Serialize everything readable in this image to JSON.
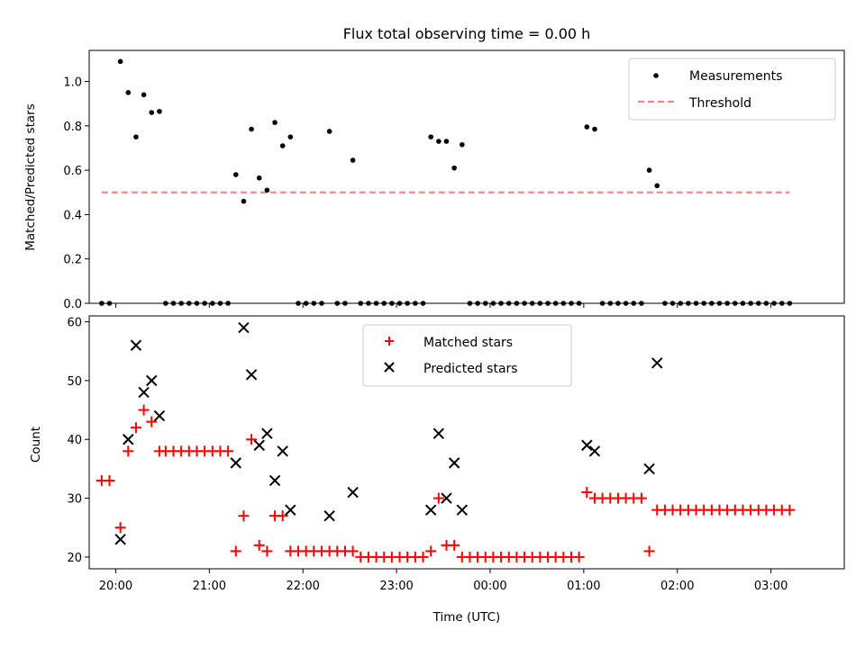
{
  "chart_data": [
    {
      "type": "scatter",
      "title": "Flux total observing time = 0.00 h",
      "xlabel": "",
      "ylabel": "Matched/Predicted stars",
      "xlim": [
        "19:43",
        "03:47"
      ],
      "ylim": [
        0,
        1.14
      ],
      "y_ticks": [
        "0.0",
        "0.2",
        "0.4",
        "0.6",
        "0.8",
        "1.0"
      ],
      "legend_position": "top-right",
      "grid": false,
      "series": [
        {
          "name": "Measurements",
          "marker": "dot",
          "color": "#000000",
          "points": [
            [
              "19:51",
              0.0
            ],
            [
              "19:56",
              0.0
            ],
            [
              "20:03",
              1.09
            ],
            [
              "20:08",
              0.95
            ],
            [
              "20:13",
              0.75
            ],
            [
              "20:18",
              0.94
            ],
            [
              "20:23",
              0.86
            ],
            [
              "20:28",
              0.865
            ],
            [
              "20:32",
              0.0
            ],
            [
              "20:37",
              0.0
            ],
            [
              "20:42",
              0.0
            ],
            [
              "20:47",
              0.0
            ],
            [
              "20:52",
              0.0
            ],
            [
              "20:57",
              0.0
            ],
            [
              "21:02",
              0.0
            ],
            [
              "21:07",
              0.0
            ],
            [
              "21:12",
              0.0
            ],
            [
              "21:17",
              0.58
            ],
            [
              "21:22",
              0.46
            ],
            [
              "21:27",
              0.785
            ],
            [
              "21:32",
              0.565
            ],
            [
              "21:37",
              0.51
            ],
            [
              "21:42",
              0.815
            ],
            [
              "21:47",
              0.71
            ],
            [
              "21:52",
              0.75
            ],
            [
              "21:57",
              0.0
            ],
            [
              "22:02",
              0.0
            ],
            [
              "22:07",
              0.0
            ],
            [
              "22:12",
              0.0
            ],
            [
              "22:17",
              0.775
            ],
            [
              "22:22",
              0.0
            ],
            [
              "22:27",
              0.0
            ],
            [
              "22:32",
              0.645
            ],
            [
              "22:37",
              0.0
            ],
            [
              "22:42",
              0.0
            ],
            [
              "22:47",
              0.0
            ],
            [
              "22:52",
              0.0
            ],
            [
              "22:57",
              0.0
            ],
            [
              "23:02",
              0.0
            ],
            [
              "23:07",
              0.0
            ],
            [
              "23:12",
              0.0
            ],
            [
              "23:17",
              0.0
            ],
            [
              "23:22",
              0.75
            ],
            [
              "23:27",
              0.73
            ],
            [
              "23:32",
              0.73
            ],
            [
              "23:37",
              0.61
            ],
            [
              "23:42",
              0.715
            ],
            [
              "23:47",
              0.0
            ],
            [
              "23:52",
              0.0
            ],
            [
              "23:57",
              0.0
            ],
            [
              "00:02",
              0.0
            ],
            [
              "00:07",
              0.0
            ],
            [
              "00:12",
              0.0
            ],
            [
              "00:17",
              0.0
            ],
            [
              "00:22",
              0.0
            ],
            [
              "00:27",
              0.0
            ],
            [
              "00:32",
              0.0
            ],
            [
              "00:37",
              0.0
            ],
            [
              "00:42",
              0.0
            ],
            [
              "00:47",
              0.0
            ],
            [
              "00:52",
              0.0
            ],
            [
              "00:57",
              0.0
            ],
            [
              "01:02",
              0.795
            ],
            [
              "01:07",
              0.785
            ],
            [
              "01:12",
              0.0
            ],
            [
              "01:17",
              0.0
            ],
            [
              "01:22",
              0.0
            ],
            [
              "01:27",
              0.0
            ],
            [
              "01:32",
              0.0
            ],
            [
              "01:37",
              0.0
            ],
            [
              "01:42",
              0.6
            ],
            [
              "01:47",
              0.53
            ],
            [
              "01:52",
              0.0
            ],
            [
              "01:57",
              0.0
            ],
            [
              "02:02",
              0.0
            ],
            [
              "02:07",
              0.0
            ],
            [
              "02:12",
              0.0
            ],
            [
              "02:17",
              0.0
            ],
            [
              "02:22",
              0.0
            ],
            [
              "02:27",
              0.0
            ],
            [
              "02:32",
              0.0
            ],
            [
              "02:37",
              0.0
            ],
            [
              "02:42",
              0.0
            ],
            [
              "02:47",
              0.0
            ],
            [
              "02:52",
              0.0
            ],
            [
              "02:57",
              0.0
            ],
            [
              "03:02",
              0.0
            ],
            [
              "03:07",
              0.0
            ],
            [
              "03:12",
              0.0
            ]
          ]
        },
        {
          "name": "Threshold",
          "type": "line",
          "style": "dashed",
          "color": "#ff7f7f",
          "points": [
            [
              "19:51",
              0.5
            ],
            [
              "03:12",
              0.5
            ]
          ]
        }
      ]
    },
    {
      "type": "scatter",
      "title": "",
      "xlabel": "Time (UTC)",
      "ylabel": "Count",
      "xlim": [
        "19:43",
        "03:47"
      ],
      "ylim": [
        18,
        61
      ],
      "x_ticks": [
        "20:00",
        "21:00",
        "22:00",
        "23:00",
        "00:00",
        "01:00",
        "02:00",
        "03:00"
      ],
      "y_ticks": [
        "20",
        "30",
        "40",
        "50",
        "60"
      ],
      "legend_position": "top-center",
      "grid": false,
      "series": [
        {
          "name": "Matched stars",
          "marker": "plus",
          "color": "#ff0000",
          "points": [
            [
              "19:51",
              33
            ],
            [
              "19:56",
              33
            ],
            [
              "20:03",
              25
            ],
            [
              "20:08",
              38
            ],
            [
              "20:13",
              42
            ],
            [
              "20:18",
              45
            ],
            [
              "20:23",
              43
            ],
            [
              "20:28",
              38
            ],
            [
              "20:32",
              38
            ],
            [
              "20:37",
              38
            ],
            [
              "20:42",
              38
            ],
            [
              "20:47",
              38
            ],
            [
              "20:52",
              38
            ],
            [
              "20:57",
              38
            ],
            [
              "21:02",
              38
            ],
            [
              "21:07",
              38
            ],
            [
              "21:12",
              38
            ],
            [
              "21:17",
              21
            ],
            [
              "21:22",
              27
            ],
            [
              "21:27",
              40
            ],
            [
              "21:32",
              22
            ],
            [
              "21:37",
              21
            ],
            [
              "21:42",
              27
            ],
            [
              "21:47",
              27
            ],
            [
              "21:52",
              21
            ],
            [
              "21:57",
              21
            ],
            [
              "22:02",
              21
            ],
            [
              "22:07",
              21
            ],
            [
              "22:12",
              21
            ],
            [
              "22:17",
              21
            ],
            [
              "22:22",
              21
            ],
            [
              "22:27",
              21
            ],
            [
              "22:32",
              21
            ],
            [
              "22:37",
              20
            ],
            [
              "22:42",
              20
            ],
            [
              "22:47",
              20
            ],
            [
              "22:52",
              20
            ],
            [
              "22:57",
              20
            ],
            [
              "23:02",
              20
            ],
            [
              "23:07",
              20
            ],
            [
              "23:12",
              20
            ],
            [
              "23:17",
              20
            ],
            [
              "23:22",
              21
            ],
            [
              "23:27",
              30
            ],
            [
              "23:32",
              22
            ],
            [
              "23:37",
              22
            ],
            [
              "23:42",
              20
            ],
            [
              "23:47",
              20
            ],
            [
              "23:52",
              20
            ],
            [
              "23:57",
              20
            ],
            [
              "00:02",
              20
            ],
            [
              "00:07",
              20
            ],
            [
              "00:12",
              20
            ],
            [
              "00:17",
              20
            ],
            [
              "00:22",
              20
            ],
            [
              "00:27",
              20
            ],
            [
              "00:32",
              20
            ],
            [
              "00:37",
              20
            ],
            [
              "00:42",
              20
            ],
            [
              "00:47",
              20
            ],
            [
              "00:52",
              20
            ],
            [
              "00:57",
              20
            ],
            [
              "01:02",
              31
            ],
            [
              "01:07",
              30
            ],
            [
              "01:12",
              30
            ],
            [
              "01:17",
              30
            ],
            [
              "01:22",
              30
            ],
            [
              "01:27",
              30
            ],
            [
              "01:32",
              30
            ],
            [
              "01:37",
              30
            ],
            [
              "01:42",
              21
            ],
            [
              "01:47",
              28
            ],
            [
              "01:52",
              28
            ],
            [
              "01:57",
              28
            ],
            [
              "02:02",
              28
            ],
            [
              "02:07",
              28
            ],
            [
              "02:12",
              28
            ],
            [
              "02:17",
              28
            ],
            [
              "02:22",
              28
            ],
            [
              "02:27",
              28
            ],
            [
              "02:32",
              28
            ],
            [
              "02:37",
              28
            ],
            [
              "02:42",
              28
            ],
            [
              "02:47",
              28
            ],
            [
              "02:52",
              28
            ],
            [
              "02:57",
              28
            ],
            [
              "03:02",
              28
            ],
            [
              "03:07",
              28
            ],
            [
              "03:12",
              28
            ]
          ]
        },
        {
          "name": "Predicted stars",
          "marker": "x",
          "color": "#000000",
          "points": [
            [
              "20:03",
              23
            ],
            [
              "20:08",
              40
            ],
            [
              "20:13",
              56
            ],
            [
              "20:18",
              48
            ],
            [
              "20:23",
              50
            ],
            [
              "20:28",
              44
            ],
            [
              "21:17",
              36
            ],
            [
              "21:22",
              59
            ],
            [
              "21:27",
              51
            ],
            [
              "21:32",
              39
            ],
            [
              "21:37",
              41
            ],
            [
              "21:42",
              33
            ],
            [
              "21:47",
              38
            ],
            [
              "21:52",
              28
            ],
            [
              "22:17",
              27
            ],
            [
              "22:32",
              31
            ],
            [
              "23:22",
              28
            ],
            [
              "23:27",
              41
            ],
            [
              "23:32",
              30
            ],
            [
              "23:37",
              36
            ],
            [
              "23:42",
              28
            ],
            [
              "01:02",
              39
            ],
            [
              "01:07",
              38
            ],
            [
              "01:42",
              35
            ],
            [
              "01:47",
              53
            ]
          ]
        }
      ]
    }
  ]
}
